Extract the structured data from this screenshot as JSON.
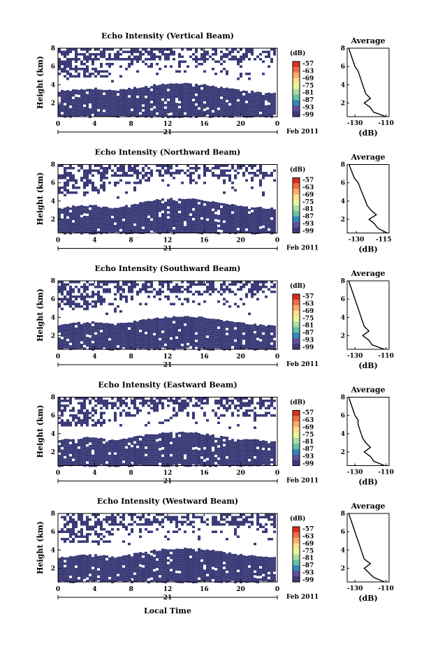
{
  "figure": {
    "xlabel": "Local Time",
    "date_label": "Feb 2011",
    "day_label": "21",
    "colorbar": {
      "unit": "(dB)",
      "ticks": [
        "-57",
        "-63",
        "-69",
        "-75",
        "-81",
        "-87",
        "-93",
        "-99"
      ],
      "colors": [
        "#d7301f",
        "#f46d43",
        "#fdae61",
        "#fee08b",
        "#e6f598",
        "#abdda4",
        "#66c2a5",
        "#3288bd",
        "#5e4fa2",
        "#3b3b7a"
      ]
    },
    "fill_color": "#3b3b78",
    "hot_color": "#e83a25"
  },
  "chart_data": [
    {
      "type": "heatmap",
      "title": "Echo Intensity (Vertical Beam)",
      "ylabel": "Height (km)",
      "xticks": [
        "0",
        "4",
        "8",
        "12",
        "16",
        "20",
        "0"
      ],
      "yticks": [
        "2",
        "4",
        "6",
        "8"
      ],
      "xlim": [
        0,
        24
      ],
      "ylim": [
        0.5,
        8
      ],
      "lower_layer": {
        "bottom_km": 0.6,
        "top_km": [
          3.3,
          3.5,
          3.6,
          3.3,
          3.6,
          3.9,
          4.1,
          4.2,
          4.0,
          3.7,
          3.4,
          3.2,
          3.1
        ]
      },
      "average_profile": {
        "title": "Average",
        "xlabel": "(dB)",
        "xticks": [
          "-130",
          "-110"
        ],
        "xlim": [
          -135,
          -108
        ],
        "yticks": [
          "2",
          "4",
          "6",
          "8"
        ],
        "ylim": [
          0.5,
          8
        ],
        "height_km": [
          0.5,
          1.0,
          1.5,
          2.0,
          2.5,
          3.0,
          3.5,
          4.0,
          4.5,
          5.0,
          5.5,
          6.0,
          6.5,
          7.0,
          7.5,
          8.0
        ],
        "db": [
          -110,
          -118,
          -120,
          -124,
          -120,
          -123,
          -124,
          -125,
          -126,
          -127,
          -128,
          -130,
          -131,
          -132,
          -133,
          -134
        ]
      }
    },
    {
      "type": "heatmap",
      "title": "Echo Intensity (Northward Beam)",
      "ylabel": "Height (km)",
      "xticks": [
        "0",
        "4",
        "8",
        "12",
        "16",
        "20",
        "0"
      ],
      "yticks": [
        "2",
        "4",
        "6",
        "8"
      ],
      "xlim": [
        0,
        24
      ],
      "ylim": [
        0.5,
        8
      ],
      "lower_layer": {
        "bottom_km": 0.6,
        "top_km": [
          3.2,
          3.5,
          3.5,
          3.2,
          3.6,
          4.0,
          4.3,
          4.3,
          4.1,
          3.8,
          3.5,
          3.3,
          3.2
        ]
      },
      "average_profile": {
        "title": "Average",
        "xlabel": "(dB)",
        "xticks": [
          "-130",
          "-115"
        ],
        "xlim": [
          -135,
          -112
        ],
        "yticks": [
          "2",
          "4",
          "6",
          "8"
        ],
        "ylim": [
          0.5,
          8
        ],
        "height_km": [
          0.5,
          1.0,
          1.5,
          2.0,
          2.5,
          3.0,
          3.5,
          4.0,
          4.5,
          5.0,
          5.5,
          6.0,
          6.5,
          7.0,
          7.5,
          8.0
        ],
        "db": [
          -113,
          -118,
          -120,
          -123,
          -119,
          -122,
          -124,
          -125,
          -126,
          -127,
          -128,
          -129,
          -131,
          -132,
          -133,
          -134
        ]
      }
    },
    {
      "type": "heatmap",
      "title": "Echo Intensity (Southward Beam)",
      "ylabel": "Height (km)",
      "xticks": [
        "0",
        "4",
        "8",
        "12",
        "16",
        "20",
        "0"
      ],
      "yticks": [
        "2",
        "4",
        "6",
        "8"
      ],
      "xlim": [
        0,
        24
      ],
      "ylim": [
        0.5,
        8
      ],
      "lower_layer": {
        "bottom_km": 0.6,
        "top_km": [
          3.2,
          3.4,
          3.5,
          3.2,
          3.5,
          3.8,
          4.0,
          4.1,
          4.0,
          3.7,
          3.4,
          3.2,
          3.1
        ]
      },
      "average_profile": {
        "title": "Average",
        "xlabel": "(dB)",
        "xticks": [
          "-130",
          "-110"
        ],
        "xlim": [
          -135,
          -108
        ],
        "yticks": [
          "2",
          "4",
          "6",
          "8"
        ],
        "ylim": [
          0.5,
          8
        ],
        "height_km": [
          0.5,
          1.0,
          1.5,
          2.0,
          2.5,
          3.0,
          3.5,
          4.0,
          4.5,
          5.0,
          5.5,
          6.0,
          6.5,
          7.0,
          7.5,
          8.0
        ],
        "db": [
          -111,
          -119,
          -121,
          -125,
          -121,
          -124,
          -125,
          -126,
          -127,
          -128,
          -129,
          -130,
          -131,
          -132,
          -133,
          -134
        ]
      }
    },
    {
      "type": "heatmap",
      "title": "Echo Intensity (Eastward Beam)",
      "ylabel": "Height (km)",
      "xticks": [
        "0",
        "4",
        "8",
        "12",
        "16",
        "20",
        "0"
      ],
      "yticks": [
        "2",
        "4",
        "6",
        "8"
      ],
      "xlim": [
        0,
        24
      ],
      "ylim": [
        0.5,
        8
      ],
      "lower_layer": {
        "bottom_km": 0.6,
        "top_km": [
          3.3,
          3.5,
          3.6,
          3.3,
          3.6,
          3.9,
          4.1,
          4.2,
          4.0,
          3.7,
          3.4,
          3.3,
          3.2
        ]
      },
      "average_profile": {
        "title": "Average",
        "xlabel": "(dB)",
        "xticks": [
          "-130",
          "-110"
        ],
        "xlim": [
          -135,
          -108
        ],
        "yticks": [
          "2",
          "4",
          "6",
          "8"
        ],
        "ylim": [
          0.5,
          8
        ],
        "height_km": [
          0.5,
          1.0,
          1.5,
          2.0,
          2.5,
          3.0,
          3.5,
          4.0,
          4.5,
          5.0,
          5.5,
          6.0,
          6.5,
          7.0,
          7.5,
          8.0
        ],
        "db": [
          -111,
          -118,
          -120,
          -124,
          -120,
          -123,
          -125,
          -126,
          -127,
          -128,
          -128,
          -130,
          -131,
          -132,
          -133,
          -134
        ]
      }
    },
    {
      "type": "heatmap",
      "title": "Echo Intensity (Westward Beam)",
      "ylabel": "Height (km)",
      "xticks": [
        "0",
        "4",
        "8",
        "12",
        "16",
        "20",
        "0"
      ],
      "yticks": [
        "2",
        "4",
        "6",
        "8"
      ],
      "xlim": [
        0,
        24
      ],
      "ylim": [
        0.5,
        8
      ],
      "lower_layer": {
        "bottom_km": 0.6,
        "top_km": [
          3.2,
          3.4,
          3.5,
          3.2,
          3.5,
          3.9,
          4.1,
          4.2,
          4.1,
          3.8,
          3.5,
          3.3,
          3.2
        ]
      },
      "average_profile": {
        "title": "Average",
        "xlabel": "(dB)",
        "xticks": [
          "-130",
          "-110"
        ],
        "xlim": [
          -135,
          -108
        ],
        "yticks": [
          "2",
          "4",
          "6",
          "8"
        ],
        "ylim": [
          0.5,
          8
        ],
        "height_km": [
          0.5,
          1.0,
          1.5,
          2.0,
          2.5,
          3.0,
          3.5,
          4.0,
          4.5,
          5.0,
          5.5,
          6.0,
          6.5,
          7.0,
          7.5,
          8.0
        ],
        "db": [
          -111,
          -118,
          -121,
          -124,
          -120,
          -124,
          -125,
          -126,
          -127,
          -128,
          -129,
          -130,
          -131,
          -132,
          -133,
          -134
        ]
      }
    }
  ]
}
